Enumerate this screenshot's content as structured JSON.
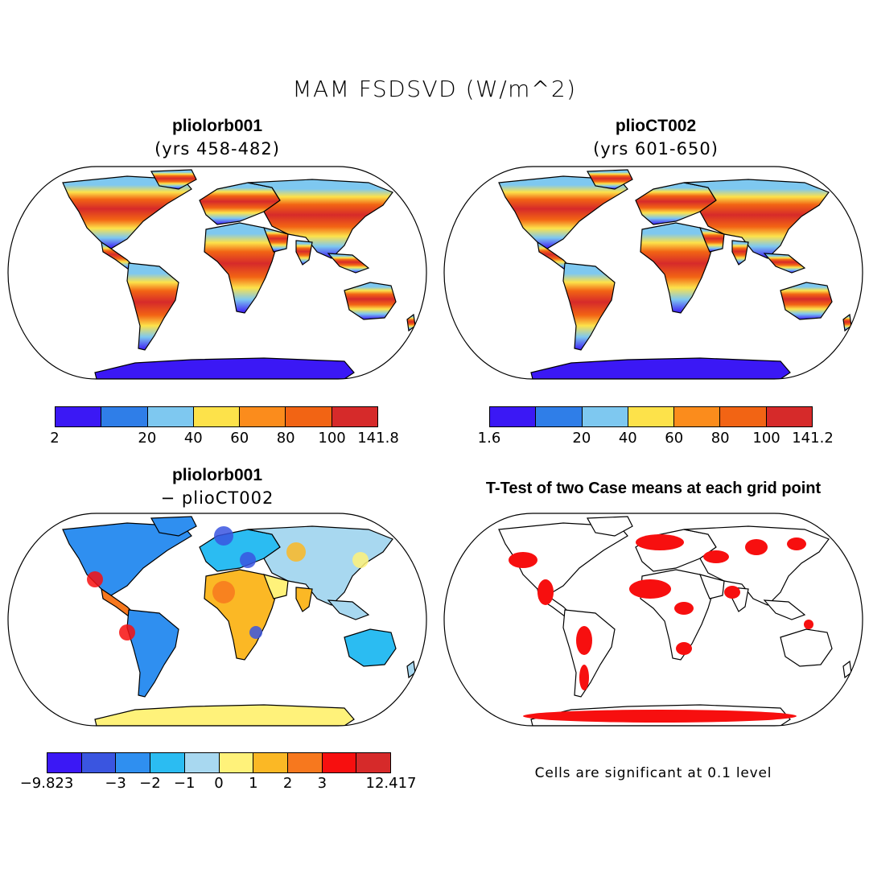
{
  "title": "MAM FSDSVD (W/m^2)",
  "panels": {
    "top_left": {
      "title": "pliolorb001",
      "subtitle": "(yrs 458-482)"
    },
    "top_right": {
      "title": "plioCT002",
      "subtitle": "(yrs 601-650)"
    },
    "bottom_left": {
      "title": "pliolorb001",
      "subtitle": "− plioCT002"
    },
    "bottom_right": {
      "title": "T-Test of two Case means at each grid point",
      "note": "Cells are significant at 0.1 level"
    }
  },
  "colorbars": {
    "top_left": {
      "labels": [
        "2",
        "20",
        "40",
        "60",
        "80",
        "100",
        "141.8"
      ],
      "colors": [
        "#3b18f5",
        "#2f7ee8",
        "#7ec8f0",
        "#fde24a",
        "#fb8c1c",
        "#f26414",
        "#d62a2a"
      ]
    },
    "top_right": {
      "labels": [
        "1.6",
        "20",
        "40",
        "60",
        "80",
        "100",
        "141.2"
      ],
      "colors": [
        "#3b18f5",
        "#2f7ee8",
        "#7ec8f0",
        "#fde24a",
        "#fb8c1c",
        "#f26414",
        "#d62a2a"
      ]
    },
    "bottom_left": {
      "labels": [
        "−9.823",
        "−3",
        "−2",
        "−1",
        "0",
        "1",
        "2",
        "3",
        "12.417"
      ],
      "colors": [
        "#3b18f5",
        "#3a55e0",
        "#2f8ff0",
        "#2bbcf2",
        "#a8d8f0",
        "#fff27a",
        "#fbb825",
        "#f7781e",
        "#f70f0f",
        "#d62a2a"
      ]
    }
  },
  "map_colors": {
    "ocean": "#ffffff",
    "outline": "#000000",
    "significant": "#f70f0f"
  }
}
